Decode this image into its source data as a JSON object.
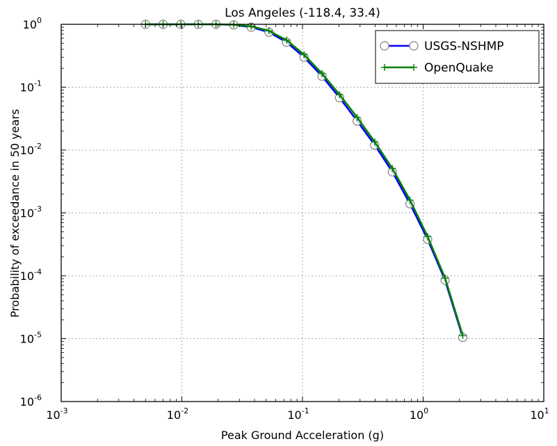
{
  "chart_data": {
    "type": "line",
    "title": "Los Angeles (-118.4, 33.4)",
    "xlabel": "Peak Ground Acceleration (g)",
    "ylabel": "Probability of exceedance in 50 years",
    "xscale": "log",
    "yscale": "log",
    "xlim": [
      0.001,
      10
    ],
    "ylim": [
      1e-06,
      1
    ],
    "grid": true,
    "legend_position": "top-right",
    "x_ticks": [
      {
        "value": 0.001,
        "base": "10",
        "exp": "-3"
      },
      {
        "value": 0.01,
        "base": "10",
        "exp": "-2"
      },
      {
        "value": 0.1,
        "base": "10",
        "exp": "-1"
      },
      {
        "value": 1,
        "base": "10",
        "exp": "0"
      },
      {
        "value": 10,
        "base": "10",
        "exp": "1"
      }
    ],
    "y_ticks": [
      {
        "value": 1,
        "base": "10",
        "exp": "0"
      },
      {
        "value": 0.1,
        "base": "10",
        "exp": "-1"
      },
      {
        "value": 0.01,
        "base": "10",
        "exp": "-2"
      },
      {
        "value": 0.001,
        "base": "10",
        "exp": "-3"
      },
      {
        "value": 0.0001,
        "base": "10",
        "exp": "-4"
      },
      {
        "value": 1e-05,
        "base": "10",
        "exp": "-5"
      },
      {
        "value": 1e-06,
        "base": "10",
        "exp": "-6"
      }
    ],
    "series": [
      {
        "name": "USGS-NSHMP",
        "color": "#0000ff",
        "marker": "circle-open",
        "x": [
          0.005,
          0.007,
          0.0098,
          0.0137,
          0.0192,
          0.0269,
          0.0376,
          0.0527,
          0.0738,
          0.103,
          0.145,
          0.203,
          0.284,
          0.397,
          0.556,
          0.778,
          1.09,
          1.52,
          2.13
        ],
        "y": [
          1.0,
          1.0,
          1.0,
          1.0,
          1.0,
          0.98,
          0.9,
          0.75,
          0.52,
          0.3,
          0.15,
          0.068,
          0.029,
          0.012,
          0.0045,
          0.0014,
          0.00038,
          8.5e-05,
          1.05e-05
        ]
      },
      {
        "name": "OpenQuake",
        "color": "#008000",
        "marker": "plus",
        "x": [
          0.005,
          0.007,
          0.0098,
          0.0137,
          0.0192,
          0.0269,
          0.0376,
          0.0527,
          0.0738,
          0.103,
          0.145,
          0.203,
          0.284,
          0.397,
          0.556,
          0.778,
          1.09,
          1.52,
          2.13
        ],
        "y": [
          1.0,
          1.0,
          1.0,
          1.0,
          1.0,
          0.99,
          0.93,
          0.79,
          0.56,
          0.33,
          0.165,
          0.076,
          0.033,
          0.0135,
          0.0051,
          0.0016,
          0.00042,
          9.2e-05,
          1.12e-05
        ]
      }
    ]
  }
}
